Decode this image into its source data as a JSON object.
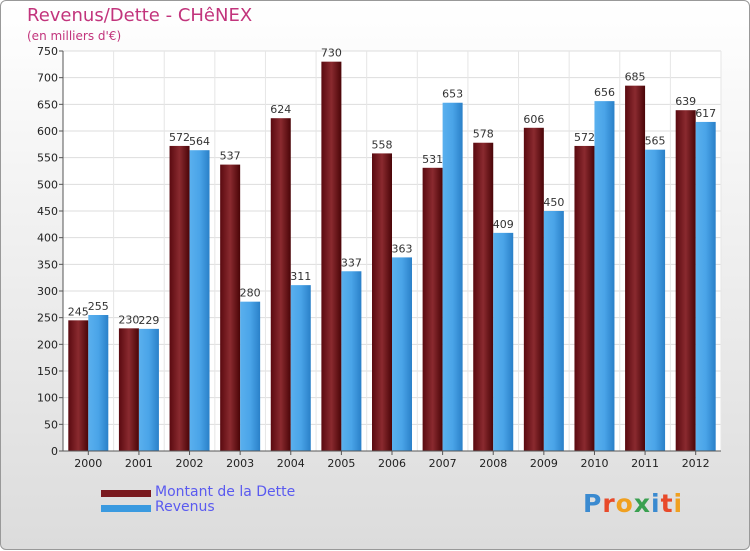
{
  "header": {
    "title": "Revenus/Dette - CHêNEX",
    "subtitle": "(en milliers d'€)"
  },
  "chart_data": {
    "type": "bar",
    "title": "Revenus/Dette - CHêNEX",
    "subtitle": "(en milliers d'€)",
    "xlabel": "",
    "ylabel": "",
    "ylim": [
      0,
      750
    ],
    "yticks": [
      0,
      50,
      100,
      150,
      200,
      250,
      300,
      350,
      400,
      450,
      500,
      550,
      600,
      650,
      700,
      750
    ],
    "grid": true,
    "legend_position": "bottom-left",
    "categories": [
      "2000",
      "2001",
      "2002",
      "2003",
      "2004",
      "2005",
      "2006",
      "2007",
      "2008",
      "2009",
      "2010",
      "2011",
      "2012"
    ],
    "series": [
      {
        "name": "Montant de la Dette",
        "color": "#7a1a1f",
        "values": [
          245,
          230,
          572,
          537,
          624,
          730,
          558,
          531,
          578,
          606,
          572,
          685,
          639
        ]
      },
      {
        "name": "Revenus",
        "color": "#3a9ae0",
        "values": [
          255,
          229,
          564,
          280,
          311,
          337,
          363,
          653,
          409,
          450,
          656,
          565,
          617
        ]
      }
    ]
  },
  "legend": {
    "items": [
      {
        "label": "Montant de la Dette",
        "color": "#7a1a1f"
      },
      {
        "label": "Revenus",
        "color": "#3a9ae0"
      }
    ]
  },
  "logo": {
    "text": "Proxiti",
    "letter_colors": [
      "#3a8ad0",
      "#e84a2a",
      "#f0a020",
      "#3aa050",
      "#3a8ad0",
      "#e84a2a",
      "#f0a020"
    ]
  }
}
